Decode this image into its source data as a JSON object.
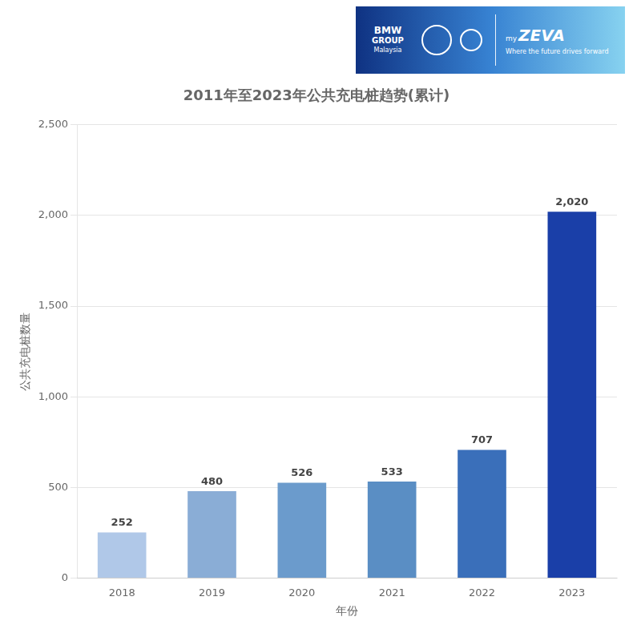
{
  "chart_data": {
    "type": "bar",
    "title": "2011年至2023年公共充电桩趋势(累计)",
    "xlabel": "年份",
    "ylabel": "公共充电桩数量",
    "categories": [
      "2018",
      "2019",
      "2020",
      "2021",
      "2022",
      "2023"
    ],
    "values": [
      252,
      480,
      526,
      533,
      707,
      2020
    ],
    "value_labels": [
      "252",
      "480",
      "526",
      "533",
      "707",
      "2,020"
    ],
    "colors": [
      "#b0c8e8",
      "#8aadd6",
      "#6b9bcc",
      "#5a8ec4",
      "#3a6fba",
      "#1a3fa8"
    ],
    "ylim": [
      0,
      2500
    ],
    "yticks": [
      0,
      500,
      {
        "value": 1000,
        "label": "1,000"
      },
      {
        "value": 1500,
        "label": "1,500"
      },
      {
        "value": 2000,
        "label": "2,000"
      },
      {
        "value": 2500,
        "label": "2,500"
      }
    ],
    "grid": true,
    "data_labels": true,
    "annotations": [
      "BMW",
      "GROUP",
      "Malaysia",
      "my",
      "ZEVA",
      "Where the future drives forward"
    ]
  }
}
